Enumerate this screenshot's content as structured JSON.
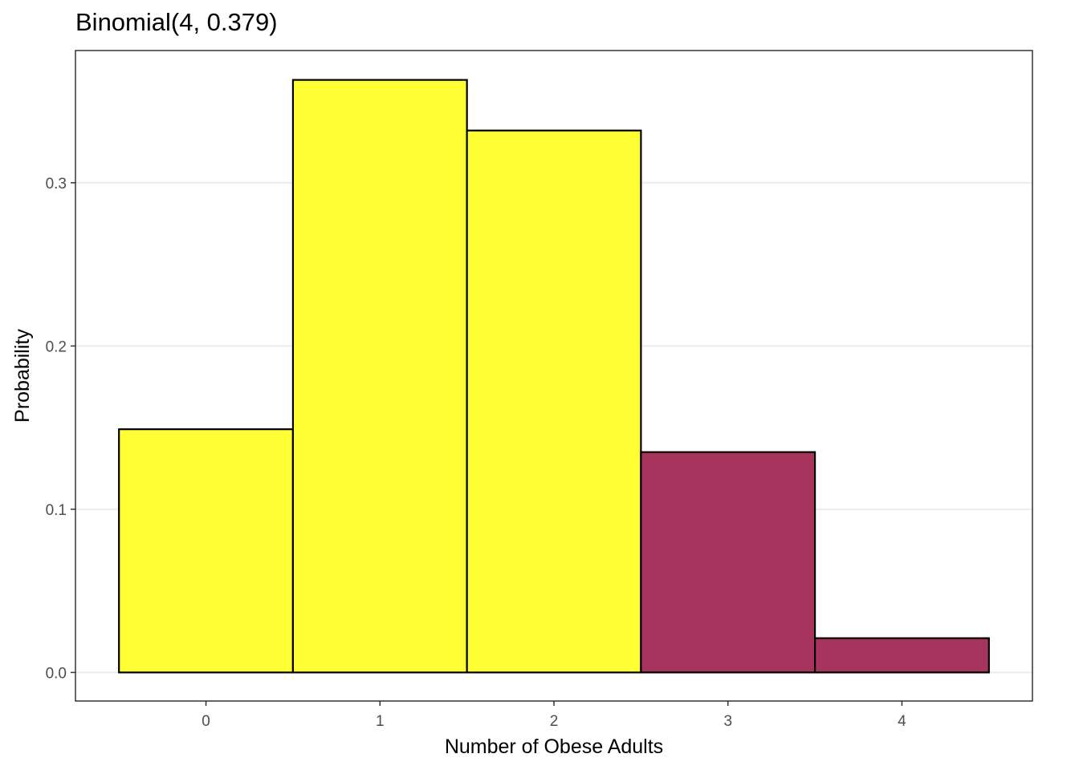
{
  "chart_data": {
    "type": "bar",
    "title": "Binomial(4, 0.379)",
    "xlabel": "Number of Obese Adults",
    "ylabel": "Probability",
    "categories": [
      "0",
      "1",
      "2",
      "3",
      "4"
    ],
    "x": [
      0,
      1,
      2,
      3,
      4
    ],
    "values": [
      0.149,
      0.363,
      0.332,
      0.135,
      0.021
    ],
    "bar_colors": [
      "#ffff33",
      "#ffff33",
      "#ffff33",
      "#a6345d",
      "#a6345d"
    ],
    "xlim": [
      -0.75,
      4.75
    ],
    "ylim": [
      -0.0175,
      0.381
    ],
    "yticks": [
      0.0,
      0.1,
      0.2,
      0.3
    ],
    "ytick_labels": [
      "0.0",
      "0.1",
      "0.2",
      "0.3"
    ],
    "xticks": [
      0,
      1,
      2,
      3,
      4
    ],
    "grid": true,
    "legend": "none",
    "colors": {
      "highlight": "#ffff33",
      "tail": "#a6345d",
      "grid": "#ebebeb",
      "border": "#333333",
      "bar_outline": "#000000"
    }
  }
}
